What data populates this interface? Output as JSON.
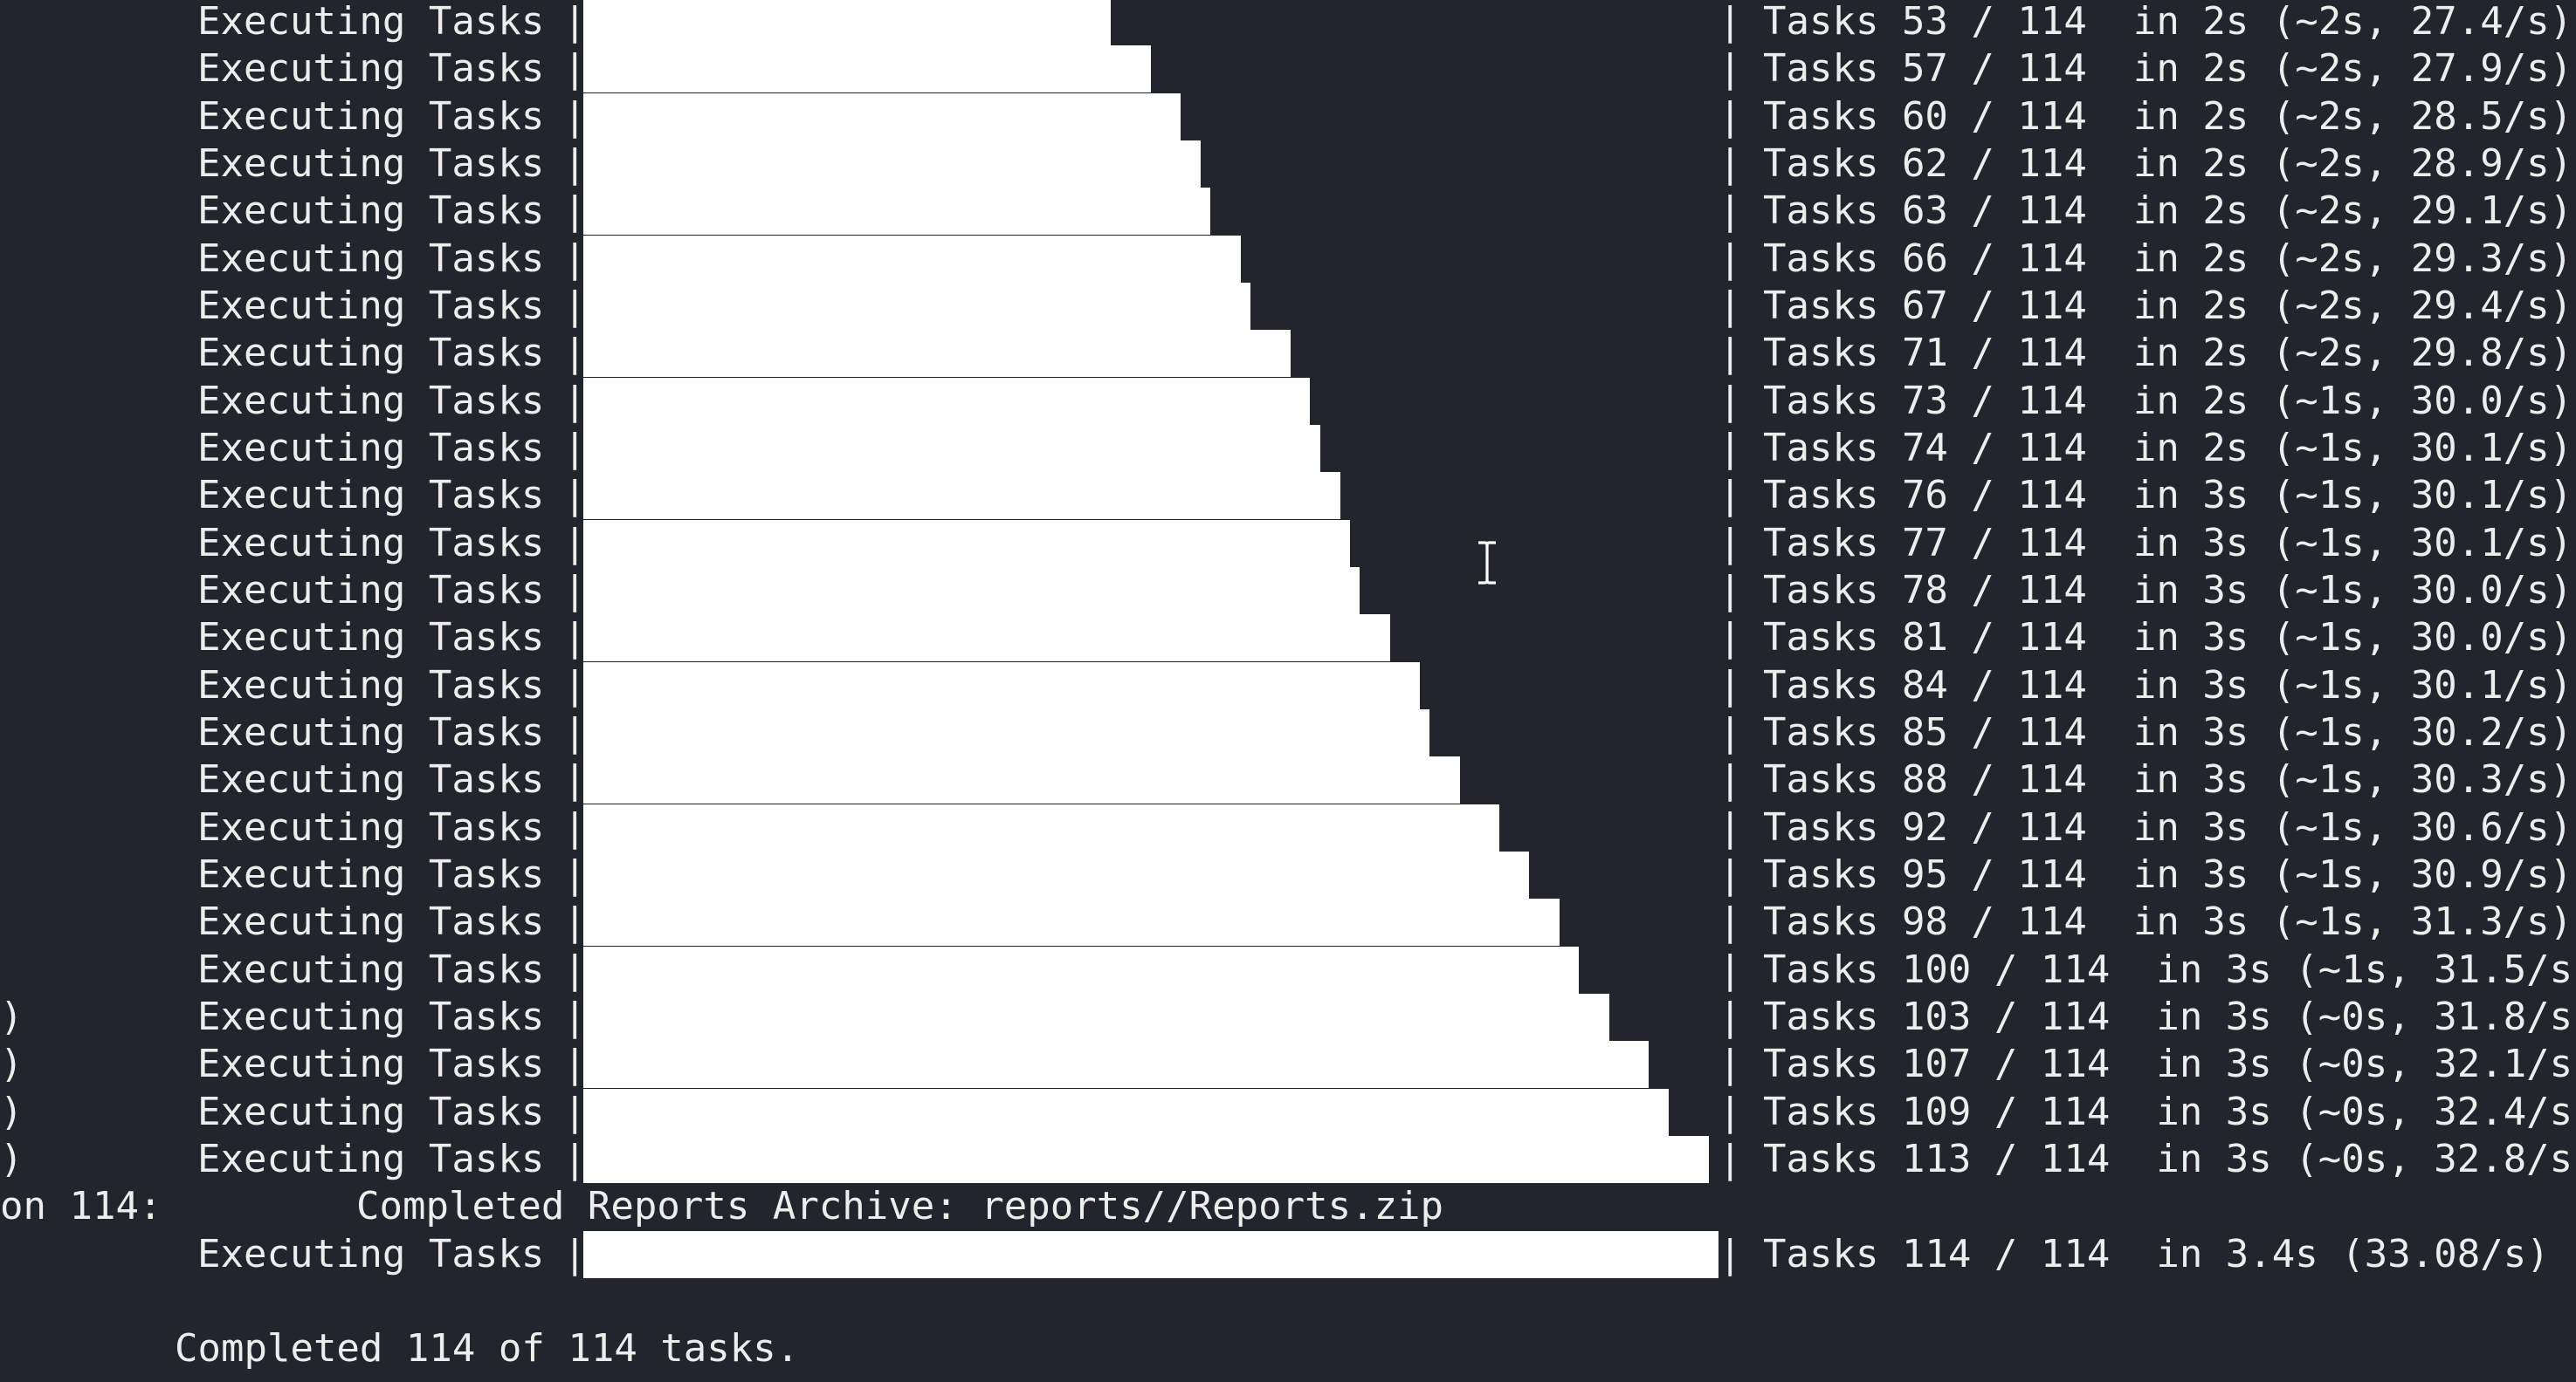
{
  "terminal": {
    "bar_label": "Executing Tasks",
    "bar_open": "|",
    "bar_close": "|",
    "progress_rows": [
      {
        "prefix": "",
        "done": 53,
        "stats": "Tasks 53 / 114  in 2s (~2s, 27.4/s)"
      },
      {
        "prefix": "",
        "done": 57,
        "stats": "Tasks 57 / 114  in 2s (~2s, 27.9/s)"
      },
      {
        "prefix": "",
        "done": 60,
        "stats": "Tasks 60 / 114  in 2s (~2s, 28.5/s)"
      },
      {
        "prefix": "",
        "done": 62,
        "stats": "Tasks 62 / 114  in 2s (~2s, 28.9/s)"
      },
      {
        "prefix": "",
        "done": 63,
        "stats": "Tasks 63 / 114  in 2s (~2s, 29.1/s)"
      },
      {
        "prefix": "",
        "done": 66,
        "stats": "Tasks 66 / 114  in 2s (~2s, 29.3/s)"
      },
      {
        "prefix": "",
        "done": 67,
        "stats": "Tasks 67 / 114  in 2s (~2s, 29.4/s)"
      },
      {
        "prefix": "",
        "done": 71,
        "stats": "Tasks 71 / 114  in 2s (~2s, 29.8/s)"
      },
      {
        "prefix": "",
        "done": 73,
        "stats": "Tasks 73 / 114  in 2s (~1s, 30.0/s)"
      },
      {
        "prefix": "",
        "done": 74,
        "stats": "Tasks 74 / 114  in 2s (~1s, 30.1/s)"
      },
      {
        "prefix": "",
        "done": 76,
        "stats": "Tasks 76 / 114  in 3s (~1s, 30.1/s)"
      },
      {
        "prefix": "",
        "done": 77,
        "stats": "Tasks 77 / 114  in 3s (~1s, 30.1/s)"
      },
      {
        "prefix": "",
        "done": 78,
        "stats": "Tasks 78 / 114  in 3s (~1s, 30.0/s)"
      },
      {
        "prefix": "",
        "done": 81,
        "stats": "Tasks 81 / 114  in 3s (~1s, 30.0/s)"
      },
      {
        "prefix": "",
        "done": 84,
        "stats": "Tasks 84 / 114  in 3s (~1s, 30.1/s)"
      },
      {
        "prefix": "",
        "done": 85,
        "stats": "Tasks 85 / 114  in 3s (~1s, 30.2/s)"
      },
      {
        "prefix": "",
        "done": 88,
        "stats": "Tasks 88 / 114  in 3s (~1s, 30.3/s)"
      },
      {
        "prefix": "",
        "done": 92,
        "stats": "Tasks 92 / 114  in 3s (~1s, 30.6/s)"
      },
      {
        "prefix": "",
        "done": 95,
        "stats": "Tasks 95 / 114  in 3s (~1s, 30.9/s)"
      },
      {
        "prefix": "",
        "done": 98,
        "stats": "Tasks 98 / 114  in 3s (~1s, 31.3/s)"
      },
      {
        "prefix": "",
        "done": 100,
        "stats": "Tasks 100 / 114  in 3s (~1s, 31.5/s"
      },
      {
        "prefix": ")",
        "done": 103,
        "stats": "Tasks 103 / 114  in 3s (~0s, 31.8/s"
      },
      {
        "prefix": ")",
        "done": 107,
        "stats": "Tasks 107 / 114  in 3s (~0s, 32.1/s"
      },
      {
        "prefix": ")",
        "done": 109,
        "stats": "Tasks 109 / 114  in 3s (~0s, 32.4/s"
      },
      {
        "prefix": ")",
        "done": 113,
        "stats": "Tasks 113 / 114  in 3s (~0s, 32.8/s"
      }
    ],
    "archive_line": {
      "prefix": "on 114:",
      "message": "Completed Reports Archive: reports//Reports.zip"
    },
    "final_row": {
      "prefix": "",
      "done": 114,
      "stats": "Tasks 114 / 114  in 3.4s (33.08/s)"
    },
    "total": 114,
    "summary": "Completed 114 of 114 tasks.",
    "cursor_icon": "text-cursor-icon",
    "colors": {
      "background": "#22252b",
      "text": "#ededed",
      "bar_fill": "#ffffff"
    }
  }
}
